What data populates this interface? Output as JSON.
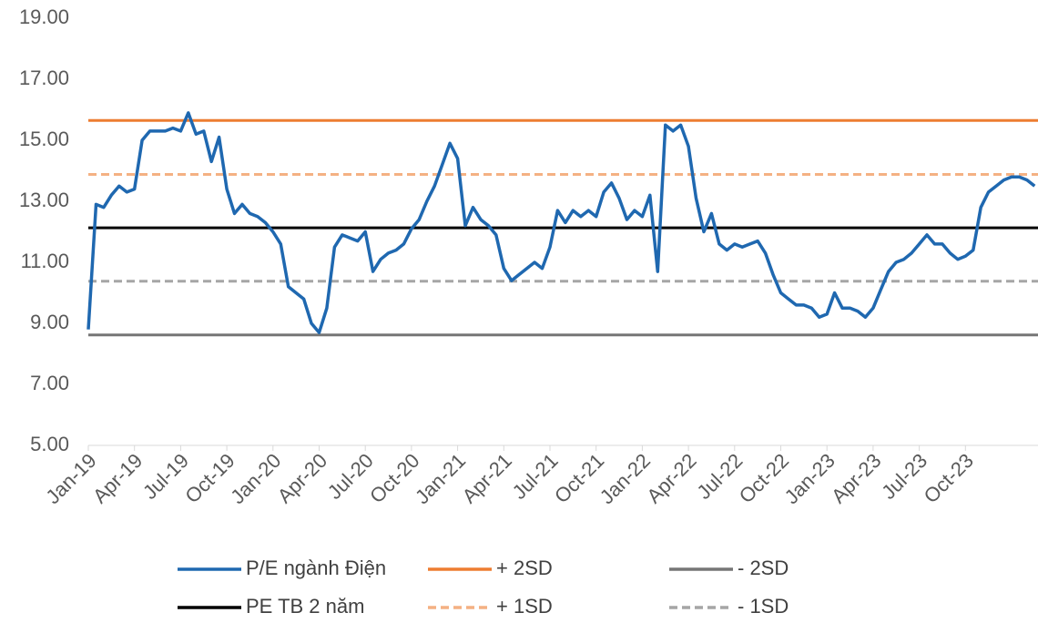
{
  "chart_data": {
    "type": "line",
    "categories": [
      "Jan-19",
      null,
      null,
      null,
      null,
      null,
      "Apr-19",
      null,
      null,
      null,
      null,
      null,
      "Jul-19",
      null,
      null,
      null,
      null,
      null,
      "Oct-19",
      null,
      null,
      null,
      null,
      null,
      "Jan-20",
      null,
      null,
      null,
      null,
      null,
      "Apr-20",
      null,
      null,
      null,
      null,
      null,
      "Jul-20",
      null,
      null,
      null,
      null,
      null,
      "Oct-20",
      null,
      null,
      null,
      null,
      null,
      "Jan-21",
      null,
      null,
      null,
      null,
      null,
      "Apr-21",
      null,
      null,
      null,
      null,
      null,
      "Jul-21",
      null,
      null,
      null,
      null,
      null,
      "Oct-21",
      null,
      null,
      null,
      null,
      null,
      "Jan-22",
      null,
      null,
      null,
      null,
      null,
      "Apr-22",
      null,
      null,
      null,
      null,
      null,
      "Jul-22",
      null,
      null,
      null,
      null,
      null,
      "Oct-22",
      null,
      null,
      null,
      null,
      null,
      "Jan-23",
      null,
      null,
      null,
      null,
      null,
      "Apr-23",
      null,
      null,
      null,
      null,
      null,
      "Jul-23",
      null,
      null,
      null,
      null,
      null,
      "Oct-23",
      null,
      null,
      null,
      null,
      null,
      null,
      null,
      null,
      null
    ],
    "series": [
      {
        "name": "P/E ngành Điện",
        "color": "#1f68b0",
        "values": [
          8.8,
          12.9,
          12.8,
          13.2,
          13.5,
          13.3,
          13.4,
          15.0,
          15.3,
          15.3,
          15.3,
          15.4,
          15.3,
          15.9,
          15.2,
          15.3,
          14.3,
          15.1,
          13.4,
          12.6,
          12.9,
          12.6,
          12.5,
          12.3,
          12.0,
          11.6,
          10.2,
          10.0,
          9.8,
          9.0,
          8.7,
          9.5,
          11.5,
          11.9,
          11.8,
          11.7,
          12.0,
          10.7,
          11.1,
          11.3,
          11.4,
          11.6,
          12.1,
          12.4,
          13.0,
          13.5,
          14.2,
          14.9,
          14.4,
          12.2,
          12.8,
          12.4,
          12.2,
          11.9,
          10.8,
          10.4,
          10.6,
          10.8,
          11.0,
          10.8,
          11.5,
          12.7,
          12.3,
          12.7,
          12.5,
          12.7,
          12.5,
          13.3,
          13.6,
          13.1,
          12.4,
          12.7,
          12.5,
          13.2,
          10.7,
          15.5,
          15.3,
          15.5,
          14.8,
          13.1,
          12.0,
          12.6,
          11.6,
          11.4,
          11.6,
          11.5,
          11.6,
          11.7,
          11.3,
          10.6,
          10.0,
          9.8,
          9.6,
          9.6,
          9.5,
          9.2,
          9.3,
          10.0,
          9.5,
          9.5,
          9.4,
          9.2,
          9.5,
          10.1,
          10.7,
          11.0,
          11.1,
          11.3,
          11.6,
          11.9,
          11.6,
          11.6,
          11.3,
          11.1,
          11.2,
          11.4,
          12.8,
          13.3,
          13.5,
          13.7,
          13.8,
          13.8,
          13.7,
          13.5
        ]
      }
    ],
    "reference_lines": [
      {
        "name": "+ 2SD",
        "color": "#ed7d31",
        "value": 15.65,
        "dashed": false
      },
      {
        "name": "- 2SD",
        "color": "#767676",
        "value": 8.62,
        "dashed": false
      },
      {
        "name": "PE TB 2 năm",
        "color": "#000000",
        "value": 12.13,
        "dashed": false
      },
      {
        "name": "+ 1SD",
        "color": "#f4b183",
        "value": 13.88,
        "dashed": true
      },
      {
        "name": "- 1SD",
        "color": "#a6a6a6",
        "value": 10.38,
        "dashed": true
      }
    ],
    "ylim": [
      5,
      19
    ],
    "yticks": [
      {
        "value": 5,
        "label": "5.00"
      },
      {
        "value": 7,
        "label": "7.00"
      },
      {
        "value": 9,
        "label": "9.00"
      },
      {
        "value": 11,
        "label": "11.00"
      },
      {
        "value": 13,
        "label": "13.00"
      },
      {
        "value": 15,
        "label": "15.00"
      },
      {
        "value": 17,
        "label": "17.00"
      },
      {
        "value": 19,
        "label": "19.00"
      }
    ],
    "grid": false
  }
}
